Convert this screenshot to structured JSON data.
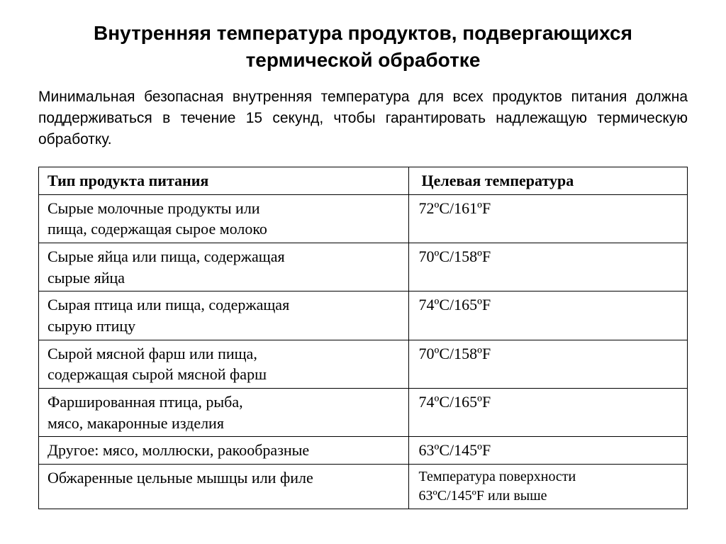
{
  "title": "Внутренняя температура продуктов, подвергающихся термической обработке",
  "subtitle": "Минимальная безопасная внутренняя температура для всех продуктов питания должна поддерживаться в течение 15 секунд, чтобы гарантировать надлежащую термическую обработку.",
  "table": {
    "columns": [
      "Тип продукта питания",
      "Целевая температура"
    ],
    "rows": [
      {
        "food": "Сырые молочные продукты или\nпища, содержащая сырое молоко",
        "temp": "72ºC/161ºF"
      },
      {
        "food": "Сырые яйца или пища, содержащая\nсырые яйца",
        "temp": "70ºC/158ºF"
      },
      {
        "food": "Сырая птица или пища, содержащая\nсырую птицу",
        "temp": "74ºC/165ºF"
      },
      {
        "food": "Сырой мясной фарш или пища,\nсодержащая сырой мясной фарш",
        "temp": "70ºC/158ºF"
      },
      {
        "food": "Фаршированная птица, рыба,\nмясо, макаронные изделия",
        "temp": "74ºC/165ºF"
      },
      {
        "food": "Другое: мясо, моллюски, ракообразные",
        "temp": "63ºC/145ºF"
      },
      {
        "food": "Обжаренные цельные мышцы или филе",
        "temp": "Температура поверхности\n63ºC/145ºF или выше",
        "tempClass": "last-temp"
      }
    ]
  },
  "styling": {
    "background_color": "#ffffff",
    "text_color": "#000000",
    "border_color": "#000000",
    "title_fontsize": 28,
    "subtitle_fontsize": 21,
    "cell_fontsize": 22,
    "last_temp_fontsize": 20,
    "title_font": "Arial",
    "body_font": "Times New Roman",
    "col_widths": [
      "57%",
      "43%"
    ]
  }
}
